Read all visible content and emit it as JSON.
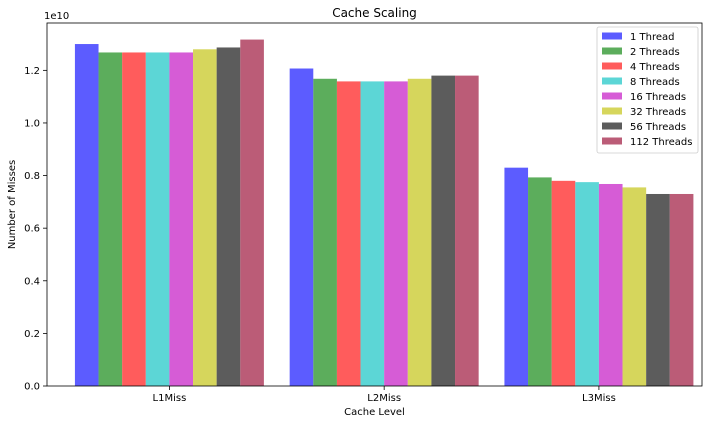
{
  "chart_data": {
    "type": "bar",
    "title": "Cache Scaling",
    "xlabel": "Cache Level",
    "ylabel": "Number of Misses",
    "y_scale_label": "1e10",
    "categories": [
      "L1Miss",
      "L2Miss",
      "L3Miss"
    ],
    "ylim": [
      0,
      13800000000.0
    ],
    "yticks": [
      0,
      2000000000.0,
      4000000000.0,
      6000000000.0,
      8000000000.0,
      10000000000.0,
      12000000000.0
    ],
    "ytick_labels": [
      "0.0",
      "0.2",
      "0.4",
      "0.6",
      "0.8",
      "1.0",
      "1.2"
    ],
    "grid": false,
    "legend_position": "top-right",
    "series": [
      {
        "name": "1 Thread",
        "color": "#3333ff",
        "values": [
          13000000000.0,
          12070000000.0,
          8300000000.0
        ]
      },
      {
        "name": "2 Threads",
        "color": "#339933",
        "values": [
          12680000000.0,
          11680000000.0,
          7930000000.0
        ]
      },
      {
        "name": "4 Threads",
        "color": "#ff3333",
        "values": [
          12680000000.0,
          11580000000.0,
          7800000000.0
        ]
      },
      {
        "name": "8 Threads",
        "color": "#33cccc",
        "values": [
          12680000000.0,
          11580000000.0,
          7750000000.0
        ]
      },
      {
        "name": "16 Threads",
        "color": "#cc33cc",
        "values": [
          12680000000.0,
          11580000000.0,
          7680000000.0
        ]
      },
      {
        "name": "32 Threads",
        "color": "#cccc33",
        "values": [
          12800000000.0,
          11680000000.0,
          7550000000.0
        ]
      },
      {
        "name": "56 Threads",
        "color": "#333333",
        "values": [
          12870000000.0,
          11800000000.0,
          7300000000.0
        ]
      },
      {
        "name": "112 Threads",
        "color": "#aa3355",
        "values": [
          13170000000.0,
          11800000000.0,
          7300000000.0
        ]
      }
    ]
  }
}
